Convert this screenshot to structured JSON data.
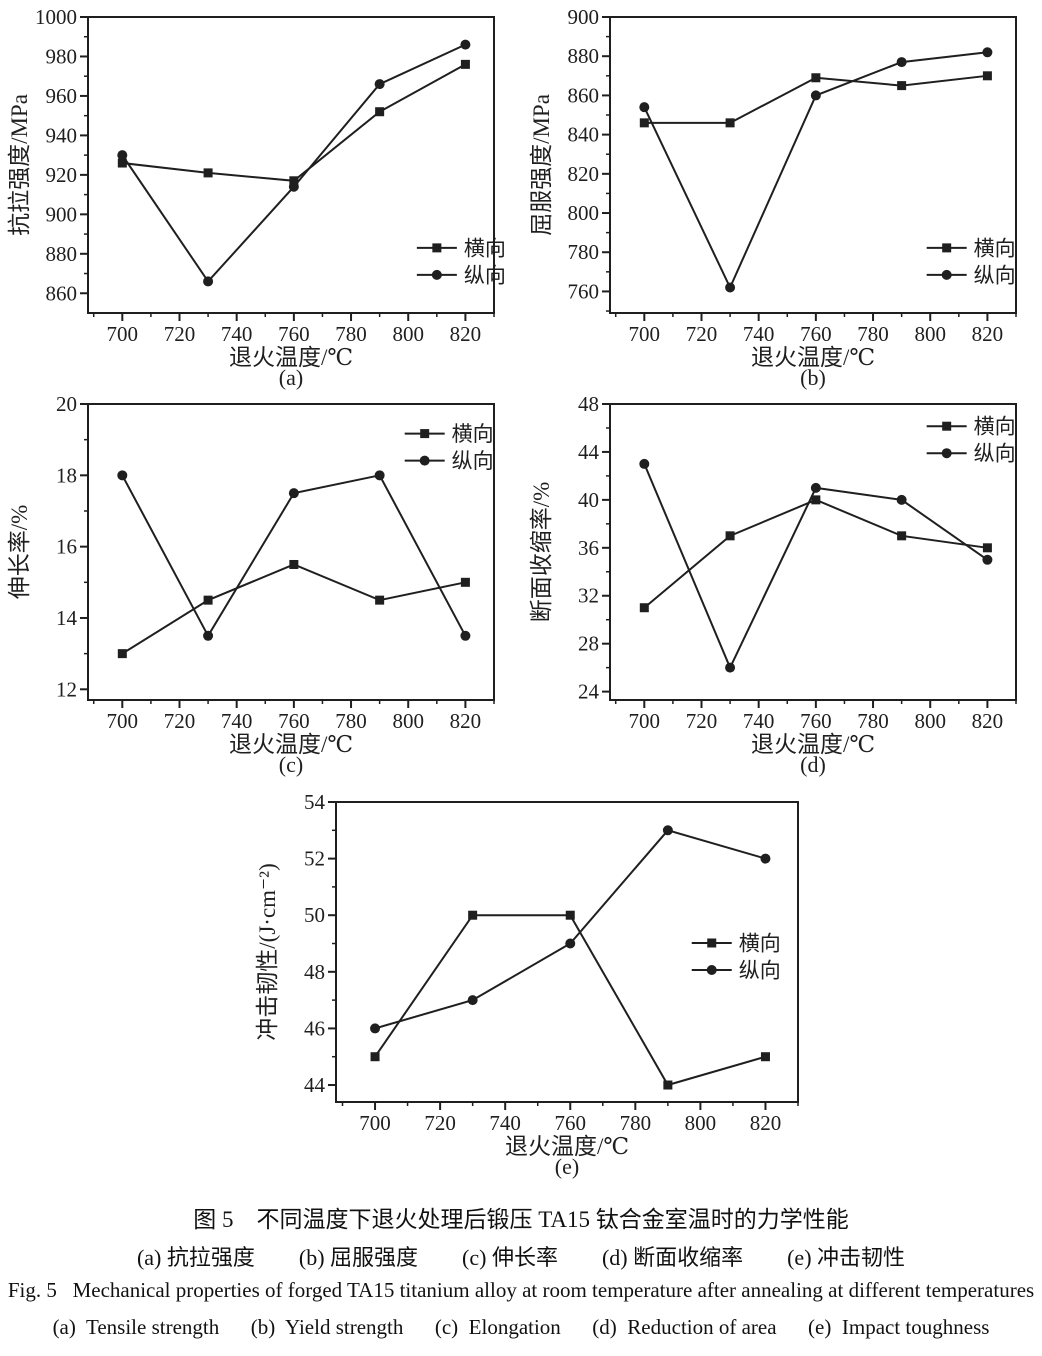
{
  "figure": {
    "caption_zh": "图 5　不同温度下退火处理后锻压 TA15 钛合金室温时的力学性能",
    "caption_zh_sub": "(a) 抗拉强度　　(b) 屈服强度　　(c) 伸长率　　(d) 断面收缩率　　(e) 冲击韧性",
    "caption_en": "Fig. 5   Mechanical properties of forged TA15 titanium alloy at room temperature after annealing at different temperatures",
    "caption_en_sub": "(a)  Tensile strength      (b)  Yield strength      (c)  Elongation      (d)  Reduction of area      (e)  Impact toughness"
  },
  "colors": {
    "line": "#1f1f1f",
    "text": "#1a1a1a",
    "background": "#ffffff"
  },
  "legend_labels": {
    "transverse": "横向",
    "longitudinal": "纵向"
  },
  "chart_data": [
    {
      "id": "a",
      "type": "line",
      "sublabel": "(a)",
      "title": "",
      "xlabel": "退火温度/℃",
      "ylabel": "抗拉强度/MPa",
      "x": [
        700,
        730,
        760,
        790,
        820
      ],
      "xlim": [
        688,
        830
      ],
      "ylim": [
        850,
        1000
      ],
      "xticks": [
        700,
        720,
        740,
        760,
        780,
        800,
        820
      ],
      "yticks": [
        860,
        880,
        900,
        920,
        940,
        960,
        980,
        1000
      ],
      "x_minor_step": 10,
      "y_minor_step": 10,
      "grid": false,
      "series": [
        {
          "key": "transverse",
          "name": "横向",
          "marker": "square",
          "values": [
            926,
            921,
            917,
            952,
            976
          ]
        },
        {
          "key": "longitudinal",
          "name": "纵向",
          "marker": "circle",
          "values": [
            930,
            866,
            914,
            966,
            986
          ]
        }
      ],
      "legend_pos": {
        "fx": 0.81,
        "fy": 0.78
      }
    },
    {
      "id": "b",
      "type": "line",
      "sublabel": "(b)",
      "title": "",
      "xlabel": "退火温度/℃",
      "ylabel": "屈服强度/MPa",
      "x": [
        700,
        730,
        760,
        790,
        820
      ],
      "xlim": [
        688,
        830
      ],
      "ylim": [
        749,
        900
      ],
      "xticks": [
        700,
        720,
        740,
        760,
        780,
        800,
        820
      ],
      "yticks": [
        760,
        780,
        800,
        820,
        840,
        860,
        880,
        900
      ],
      "x_minor_step": 10,
      "y_minor_step": 10,
      "grid": false,
      "series": [
        {
          "key": "transverse",
          "name": "横向",
          "marker": "square",
          "values": [
            846,
            846,
            869,
            865,
            870
          ]
        },
        {
          "key": "longitudinal",
          "name": "纵向",
          "marker": "circle",
          "values": [
            854,
            762,
            860,
            877,
            882
          ]
        }
      ],
      "legend_pos": {
        "fx": 0.78,
        "fy": 0.78
      }
    },
    {
      "id": "c",
      "type": "line",
      "sublabel": "(c)",
      "title": "",
      "xlabel": "退火温度/℃",
      "ylabel": "伸长率/%",
      "x": [
        700,
        730,
        760,
        790,
        820
      ],
      "xlim": [
        688,
        830
      ],
      "ylim": [
        11.7,
        20
      ],
      "xticks": [
        700,
        720,
        740,
        760,
        780,
        800,
        820
      ],
      "yticks": [
        12,
        14,
        16,
        18,
        20
      ],
      "x_minor_step": 10,
      "y_minor_step": 1,
      "grid": false,
      "series": [
        {
          "key": "transverse",
          "name": "横向",
          "marker": "square",
          "values": [
            13,
            14.5,
            15.5,
            14.5,
            15
          ]
        },
        {
          "key": "longitudinal",
          "name": "纵向",
          "marker": "circle",
          "values": [
            18,
            13.5,
            17.5,
            18,
            13.5
          ]
        }
      ],
      "legend_pos": {
        "fx": 0.78,
        "fy": 0.1
      }
    },
    {
      "id": "d",
      "type": "line",
      "sublabel": "(d)",
      "title": "",
      "xlabel": "退火温度/℃",
      "ylabel": "断面收缩率/%",
      "x": [
        700,
        730,
        760,
        790,
        820
      ],
      "xlim": [
        688,
        830
      ],
      "ylim": [
        23.3,
        48
      ],
      "xticks": [
        700,
        720,
        740,
        760,
        780,
        800,
        820
      ],
      "yticks": [
        24,
        28,
        32,
        36,
        40,
        44,
        48
      ],
      "x_minor_step": 10,
      "y_minor_step": 2,
      "grid": false,
      "series": [
        {
          "key": "transverse",
          "name": "横向",
          "marker": "square",
          "values": [
            31,
            37,
            40,
            37,
            36
          ]
        },
        {
          "key": "longitudinal",
          "name": "纵向",
          "marker": "circle",
          "values": [
            43,
            26,
            41,
            40,
            35
          ]
        }
      ],
      "legend_pos": {
        "fx": 0.78,
        "fy": 0.075
      }
    },
    {
      "id": "e",
      "type": "line",
      "sublabel": "(e)",
      "title": "",
      "xlabel": "退火温度/℃",
      "ylabel": "冲击韧性/(J·cm⁻²)",
      "x": [
        700,
        730,
        760,
        790,
        820
      ],
      "xlim": [
        688,
        830
      ],
      "ylim": [
        43.4,
        54
      ],
      "xticks": [
        700,
        720,
        740,
        760,
        780,
        800,
        820
      ],
      "yticks": [
        44,
        46,
        48,
        50,
        52,
        54
      ],
      "x_minor_step": 10,
      "y_minor_step": 1,
      "grid": false,
      "series": [
        {
          "key": "transverse",
          "name": "横向",
          "marker": "square",
          "values": [
            45,
            50,
            50,
            44,
            45
          ]
        },
        {
          "key": "longitudinal",
          "name": "纵向",
          "marker": "circle",
          "values": [
            46,
            47,
            49,
            53,
            52
          ]
        }
      ],
      "legend_pos": {
        "fx": 0.77,
        "fy": 0.47
      }
    }
  ]
}
